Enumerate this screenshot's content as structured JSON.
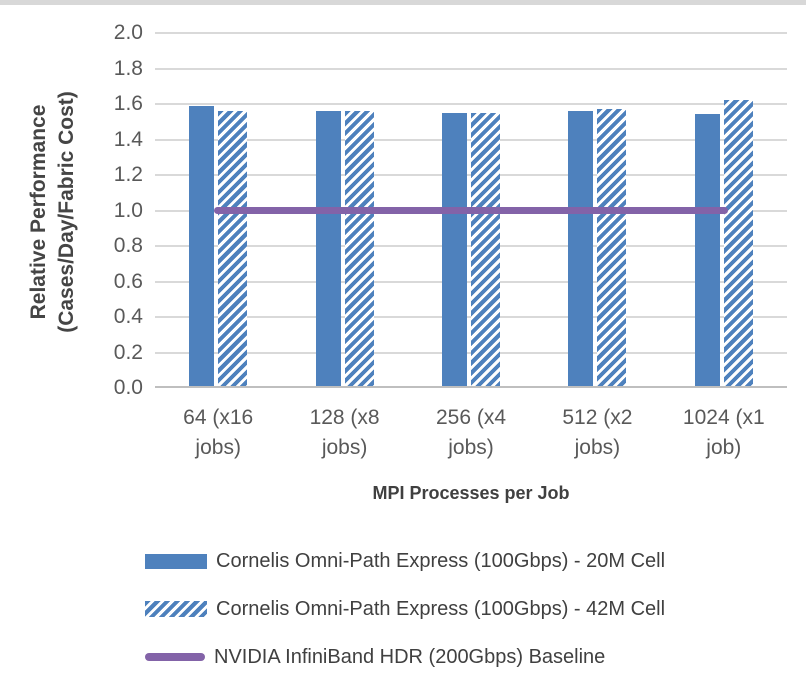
{
  "page": {
    "background": "#ffffff",
    "top_strip_color": "#D8D8D8"
  },
  "chart_data": {
    "type": "bar",
    "title": "",
    "categories": [
      "64 (x16 jobs)",
      "128 (x8 jobs)",
      "256 (x4 jobs)",
      "512 (x2 jobs)",
      "1024 (x1 job)"
    ],
    "series": [
      {
        "name": "Cornelis Omni-Path Express (100Gbps) - 20M Cell",
        "style": "solid",
        "values": [
          1.58,
          1.55,
          1.54,
          1.55,
          1.53
        ]
      },
      {
        "name": "Cornelis Omni-Path Express (100Gbps) - 42M Cell",
        "style": "hatched",
        "values": [
          1.55,
          1.55,
          1.54,
          1.56,
          1.61
        ]
      }
    ],
    "baseline": {
      "name": "NVIDIA InfiniBand HDR (200Gbps) Baseline",
      "value": 1.0,
      "style": "line"
    },
    "xlabel": "MPI Processes per Job",
    "ylabel": "Relative Performance (Cases/Day/Fabric Cost)",
    "ylabel_lines": [
      "Relative Performance",
      "(Cases/Day/Fabric Cost)"
    ],
    "ylim": [
      0.0,
      2.0
    ],
    "ytick_step": 0.2,
    "yticks": [
      "0.0",
      "0.2",
      "0.4",
      "0.6",
      "0.8",
      "1.0",
      "1.2",
      "1.4",
      "1.6",
      "1.8",
      "2.0"
    ],
    "grid": true,
    "legend_position": "bottom-left",
    "colors": {
      "bar_blue": "#4E81BD",
      "baseline_purple": "#8363A8",
      "gridline": "#D9D9D9",
      "axis_line": "#BFBFBF",
      "tick_text": "#595959",
      "axis_title_text": "#404040",
      "legend_text": "#404040"
    }
  }
}
